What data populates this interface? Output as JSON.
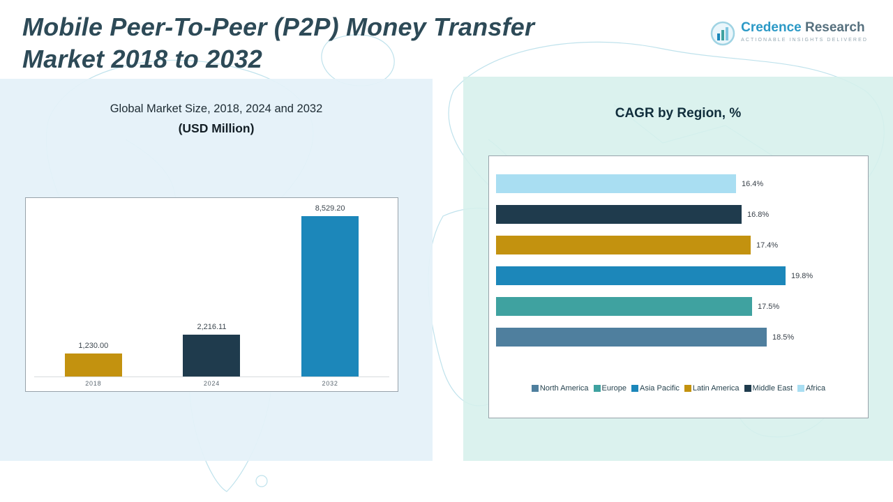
{
  "header": {
    "title_line1": "Mobile Peer-To-Peer (P2P) Money Transfer",
    "title_line2": "Market 2018 to 2032",
    "logo": {
      "name_part1": "Credence",
      "name_part2": " Research",
      "tagline": "Actionable Insights Delivered"
    }
  },
  "left_panel": {
    "subtitle_line1": "Global Market Size, 2018, 2024 and 2032",
    "subtitle_line2": "(USD Million)"
  },
  "right_panel": {
    "title": "CAGR by Region, %"
  },
  "colors": {
    "title_text": "#2d4a57",
    "left_panel_bg": "#e4f1f9",
    "right_panel_bg": "#d6f0ec",
    "map_line": "#a9d8e6",
    "gold": "#c3920f",
    "dark_navy": "#1f3b4d",
    "blue": "#1c87ba",
    "teal": "#3fa2a0",
    "steel_blue": "#4f7f9e",
    "light_blue": "#a9def2"
  },
  "chart_data": [
    {
      "type": "bar",
      "orientation": "vertical",
      "title": "Global Market Size, 2018, 2024 and 2032 (USD Million)",
      "categories": [
        "2018",
        "2024",
        "2032"
      ],
      "values": [
        1230.0,
        2216.11,
        8529.2
      ],
      "data_labels": [
        "1,230.00",
        "2,216.11",
        "8,529.20"
      ],
      "colors": [
        "#c3920f",
        "#1f3b4d",
        "#1c87ba"
      ],
      "ylim": [
        0,
        8529.2
      ],
      "grid": false,
      "legend_position": "none"
    },
    {
      "type": "bar",
      "orientation": "horizontal",
      "title": "CAGR by Region, %",
      "categories": [
        "Africa",
        "Middle East",
        "Latin America",
        "Asia Pacific",
        "Europe",
        "North America"
      ],
      "values": [
        16.4,
        16.8,
        17.4,
        19.8,
        17.5,
        18.5
      ],
      "data_labels": [
        "16.4%",
        "16.8%",
        "17.4%",
        "19.8%",
        "17.5%",
        "18.5%"
      ],
      "colors": [
        "#a9def2",
        "#1f3b4d",
        "#c3920f",
        "#1c87ba",
        "#3fa2a0",
        "#4f7f9e"
      ],
      "xlim": [
        0,
        19.8
      ],
      "grid": false,
      "legend": [
        "North America",
        "Europe",
        "Asia Pacific",
        "Latin America",
        "Middle East",
        "Africa"
      ],
      "legend_colors": [
        "#4f7f9e",
        "#3fa2a0",
        "#1c87ba",
        "#c3920f",
        "#1f3b4d",
        "#a9def2"
      ],
      "legend_position": "bottom"
    }
  ]
}
